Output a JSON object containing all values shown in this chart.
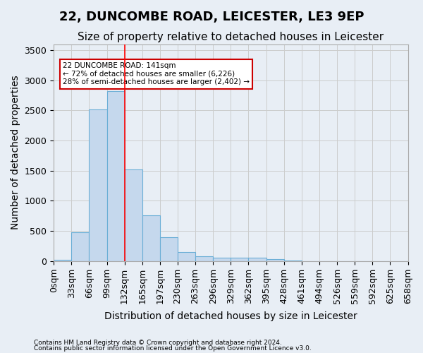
{
  "title": "22, DUNCOMBE ROAD, LEICESTER, LE3 9EP",
  "subtitle": "Size of property relative to detached houses in Leicester",
  "xlabel": "Distribution of detached houses by size in Leicester",
  "ylabel": "Number of detached properties",
  "footnote1": "Contains HM Land Registry data © Crown copyright and database right 2024.",
  "footnote2": "Contains public sector information licensed under the Open Government Licence v3.0.",
  "bin_labels": [
    "0sqm",
    "33sqm",
    "66sqm",
    "99sqm",
    "132sqm",
    "165sqm",
    "197sqm",
    "230sqm",
    "263sqm",
    "296sqm",
    "329sqm",
    "362sqm",
    "395sqm",
    "428sqm",
    "461sqm",
    "494sqm",
    "526sqm",
    "559sqm",
    "592sqm",
    "625sqm",
    "658sqm"
  ],
  "bar_values": [
    20,
    480,
    2520,
    2820,
    1520,
    760,
    390,
    145,
    75,
    55,
    55,
    55,
    30,
    10,
    0,
    0,
    0,
    0,
    0,
    0
  ],
  "bar_color": "#c5d8ed",
  "bar_edgecolor": "#6aaed6",
  "property_size": 141,
  "property_bin_index": 4,
  "vline_x": 4,
  "annotation_text": "22 DUNCOMBE ROAD: 141sqm\n← 72% of detached houses are smaller (6,226)\n28% of semi-detached houses are larger (2,402) →",
  "annotation_box_color": "#ffffff",
  "annotation_box_edgecolor": "#cc0000",
  "ylim": [
    0,
    3600
  ],
  "yticks": [
    0,
    500,
    1000,
    1500,
    2000,
    2500,
    3000,
    3500
  ],
  "grid_color": "#cccccc",
  "bg_color": "#e8eef5",
  "title_fontsize": 13,
  "subtitle_fontsize": 11,
  "axis_fontsize": 9,
  "ylabel_fontsize": 10
}
